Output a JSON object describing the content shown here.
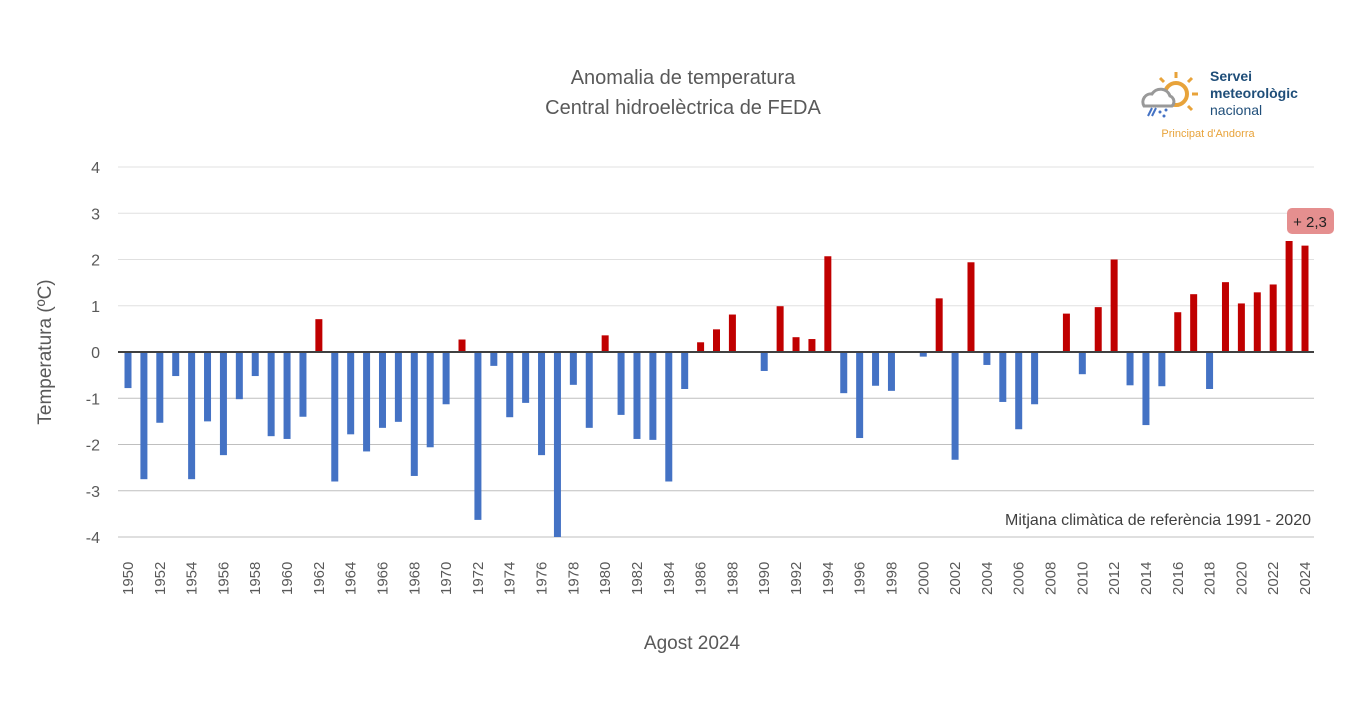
{
  "chart_data": {
    "type": "bar",
    "title": "Anomalia de temperatura",
    "subtitle": "Central hidroelèctrica de FEDA",
    "xlabel": "Agost 2024",
    "ylabel": "Temperatura (ºC)",
    "ylim": [
      -4,
      4
    ],
    "yticks": [
      "4",
      "3",
      "2",
      "1",
      "0",
      "-1",
      "-2",
      "-3",
      "-4"
    ],
    "grid": true,
    "annotation": "+ 2,3",
    "reference_note": "Mitjana climàtica de referència 1991 - 2020",
    "colors": {
      "positive": "#c00000",
      "negative": "#4472c4",
      "annotation_bg": "#e58f8f"
    },
    "categories": [
      1950,
      1951,
      1952,
      1953,
      1954,
      1955,
      1956,
      1957,
      1958,
      1959,
      1960,
      1961,
      1962,
      1963,
      1964,
      1965,
      1966,
      1967,
      1968,
      1969,
      1970,
      1971,
      1972,
      1973,
      1974,
      1975,
      1976,
      1977,
      1978,
      1979,
      1980,
      1981,
      1982,
      1983,
      1984,
      1985,
      1986,
      1987,
      1988,
      1989,
      1990,
      1991,
      1992,
      1993,
      1994,
      1995,
      1996,
      1997,
      1998,
      1999,
      2000,
      2001,
      2002,
      2003,
      2004,
      2005,
      2006,
      2007,
      2008,
      2009,
      2010,
      2011,
      2012,
      2013,
      2014,
      2015,
      2016,
      2017,
      2018,
      2019,
      2020,
      2021,
      2022,
      2023,
      2024
    ],
    "values": [
      -0.78,
      -2.75,
      -1.53,
      -0.52,
      -2.75,
      -1.5,
      -2.23,
      -1.02,
      -0.52,
      -1.82,
      -1.88,
      -1.4,
      0.71,
      -2.8,
      -1.78,
      -2.15,
      -1.64,
      -1.51,
      -2.68,
      -2.06,
      -1.13,
      0.27,
      -3.63,
      -0.3,
      -1.41,
      -1.1,
      -2.23,
      -4.0,
      -0.71,
      -1.64,
      0.36,
      -1.36,
      -1.88,
      -1.9,
      -2.8,
      -0.8,
      0.21,
      0.49,
      0.81,
      0,
      -0.41,
      0.99,
      0.32,
      0.28,
      2.07,
      -0.89,
      -1.86,
      -0.73,
      -0.84,
      0,
      -0.1,
      1.16,
      -2.33,
      1.94,
      -0.28,
      -1.08,
      -1.67,
      -1.13,
      0,
      0.83,
      -0.48,
      0.97,
      2.0,
      -0.72,
      -1.58,
      -0.74,
      0.86,
      1.25,
      -0.8,
      1.51,
      1.05,
      1.29,
      1.46,
      2.4,
      2.3
    ]
  },
  "logo": {
    "line1": "Servei",
    "line2": "meteorològic",
    "line3": "nacional",
    "sub": "Principat d'Andorra"
  }
}
